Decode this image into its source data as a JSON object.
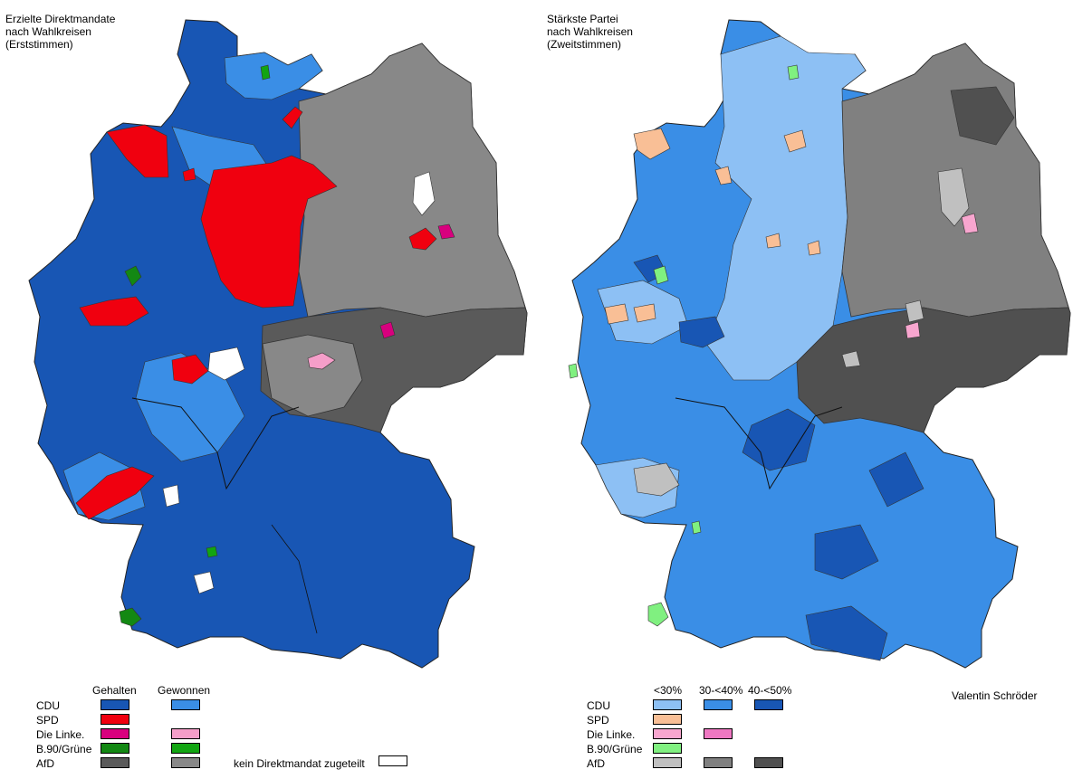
{
  "left_map": {
    "title": "Erzielte Direktmandate\nnach Wahlkreisen\n(Erststimmen)",
    "legend": {
      "col1": "Gehalten",
      "col2": "Gewonnen",
      "rows": [
        {
          "label": "CDU",
          "held": "#1856b4",
          "won": "#3a8ee6"
        },
        {
          "label": "SPD",
          "held": "#f0000f",
          "won": null
        },
        {
          "label": "Die Linke.",
          "held": "#d8007e",
          "won": "#f59ec9"
        },
        {
          "label": "B.90/Grüne",
          "held": "#138813",
          "won": "#12a512"
        },
        {
          "label": "AfD",
          "held": "#5a5a5a",
          "won": "#888888"
        }
      ],
      "none_label": "kein Direktmandat zugeteilt",
      "none_color": "#ffffff"
    }
  },
  "right_map": {
    "title": "Stärkste Partei\nnach Wahlkreisen\n(Zweitstimmen)",
    "legend": {
      "cols": [
        "<30%",
        "30-<40%",
        "40-<50%"
      ],
      "rows": [
        {
          "label": "CDU",
          "colors": [
            "#8dc0f4",
            "#3a8ee6",
            "#1856b4"
          ]
        },
        {
          "label": "SPD",
          "colors": [
            "#f9bf96",
            null,
            null
          ]
        },
        {
          "label": "Die Linke.",
          "colors": [
            "#f8a6cf",
            "#ef78c2",
            null
          ]
        },
        {
          "label": "B.90/Grüne",
          "colors": [
            "#80f080",
            null,
            null
          ]
        },
        {
          "label": "AfD",
          "colors": [
            "#c0c0c0",
            "#808080",
            "#505050"
          ]
        }
      ]
    }
  },
  "credit": "Valentin Schröder"
}
